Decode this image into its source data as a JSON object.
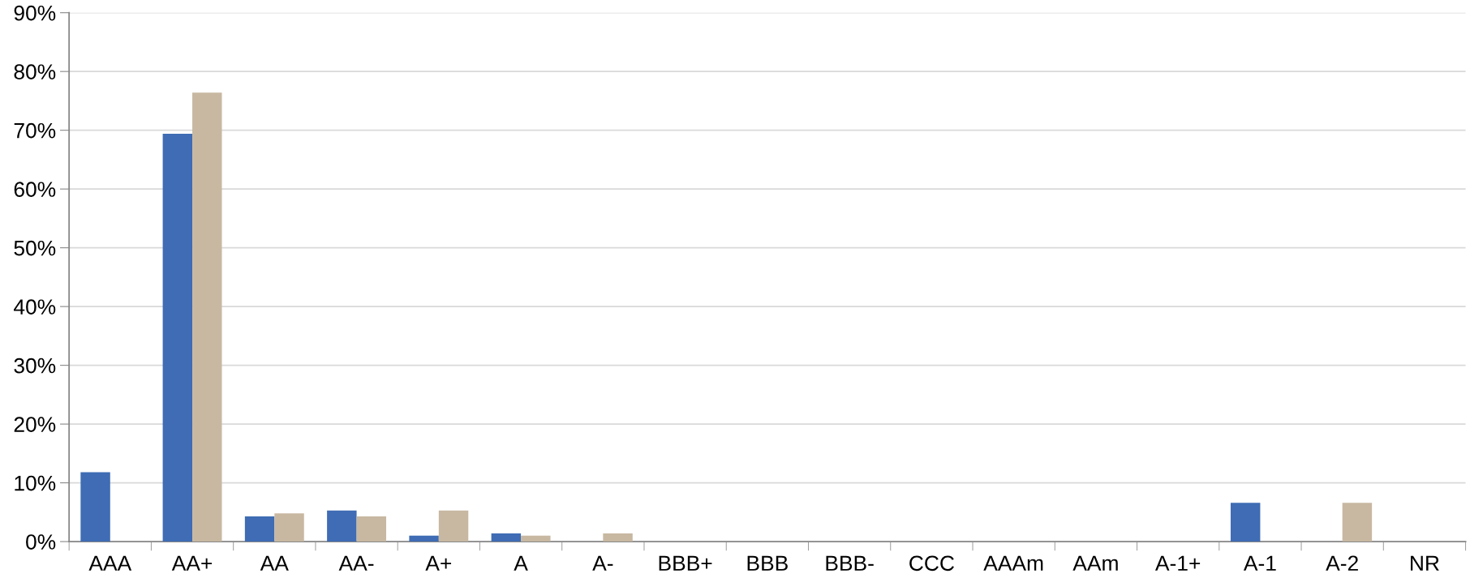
{
  "chart_data": {
    "type": "bar",
    "categories": [
      "AAA",
      "AA+",
      "AA",
      "AA-",
      "A+",
      "A",
      "A-",
      "BBB+",
      "BBB",
      "BBB-",
      "CCC",
      "AAAm",
      "AAm",
      "A-1+",
      "A-1",
      "A-2",
      "NR"
    ],
    "series": [
      {
        "color": "#3f6cb4",
        "values": [
          11.8,
          69.4,
          4.3,
          5.3,
          1.0,
          1.4,
          0,
          0,
          0,
          0,
          0,
          0,
          0,
          0,
          6.6,
          0,
          0
        ]
      },
      {
        "color": "#c8b8a2",
        "values": [
          0,
          76.4,
          4.8,
          4.3,
          5.3,
          1.0,
          1.4,
          0,
          0,
          0,
          0,
          0,
          0,
          0,
          0,
          6.6,
          0
        ]
      }
    ],
    "ylim": [
      0,
      90
    ],
    "yticks": [
      {
        "value": 0,
        "label": "0%"
      },
      {
        "value": 10,
        "label": "10%"
      },
      {
        "value": 20,
        "label": "20%"
      },
      {
        "value": 30,
        "label": "30%"
      },
      {
        "value": 40,
        "label": "40%"
      },
      {
        "value": 50,
        "label": "50%"
      },
      {
        "value": 60,
        "label": "60%"
      },
      {
        "value": 70,
        "label": "70%"
      },
      {
        "value": 80,
        "label": "80%"
      },
      {
        "value": 90,
        "label": "90%"
      }
    ],
    "grid": "y"
  }
}
